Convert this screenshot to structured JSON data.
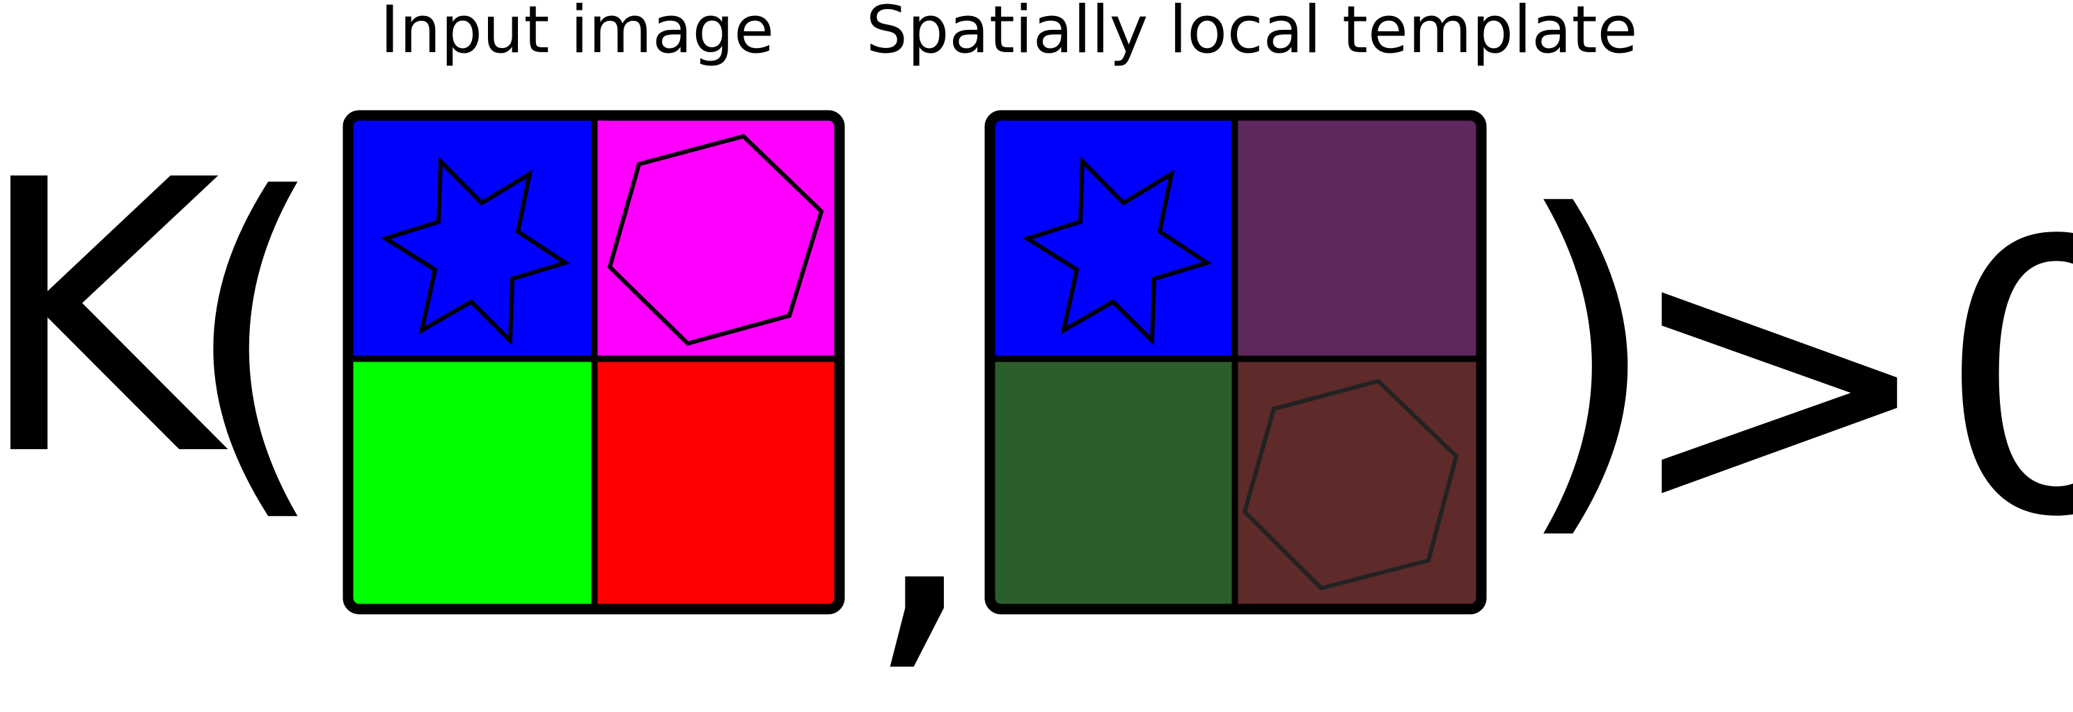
{
  "captions": {
    "input": "Input image",
    "template": "Spatially local template"
  },
  "formula": {
    "func": "K",
    "open_paren": "(",
    "comma": ",",
    "close_paren": ")",
    "comparison": ">0"
  },
  "input_image": {
    "cells": [
      {
        "color": "#0000ff",
        "shape": "star-6"
      },
      {
        "color": "#ff00ff",
        "shape": "hexagon"
      },
      {
        "color": "#00ff00",
        "shape": "none"
      },
      {
        "color": "#ff0000",
        "shape": "none"
      }
    ]
  },
  "template_image": {
    "cells": [
      {
        "color": "#0000ff",
        "shape": "star-6"
      },
      {
        "color": "#5e285e",
        "shape": "none"
      },
      {
        "color": "#2c5e2c",
        "shape": "none"
      },
      {
        "color": "#5e2a2a",
        "shape": "hexagon"
      }
    ]
  }
}
